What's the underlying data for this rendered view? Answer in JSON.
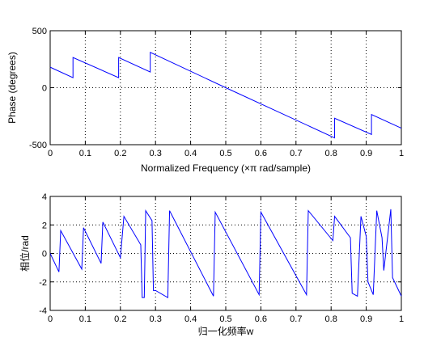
{
  "chart_data": [
    {
      "type": "line",
      "xlabel": "Normalized Frequency  (×π rad/sample)",
      "ylabel": "Phase (degrees)",
      "xlim": [
        0,
        1
      ],
      "ylim": [
        -500,
        500
      ],
      "xticks": [
        0,
        0.1,
        0.2,
        0.3,
        0.4,
        0.5,
        0.6,
        0.7,
        0.8,
        0.9,
        1
      ],
      "xtick_labels": [
        "0",
        "0.1",
        "0.2",
        "0.3",
        "0.4",
        "0.5",
        "0.6",
        "0.7",
        "0.8",
        "0.9",
        "1"
      ],
      "yticks": [
        -500,
        0,
        500
      ],
      "ytick_labels": [
        "-500",
        "0",
        "500"
      ],
      "grid": true,
      "series": [
        {
          "color": "#0000ff",
          "x": [
            0,
            0.065,
            0.065,
            0.195,
            0.195,
            0.285,
            0.285,
            0.5,
            0.81,
            0.81,
            0.915,
            0.915,
            1
          ],
          "y": [
            180,
            88,
            265,
            88,
            265,
            138,
            310,
            0,
            -440,
            -268,
            -410,
            -235,
            -355
          ]
        }
      ]
    },
    {
      "type": "line",
      "xlabel": "归一化频率w",
      "ylabel": "相位/rad",
      "xlim": [
        0,
        1
      ],
      "ylim": [
        -4,
        4
      ],
      "xticks": [
        0,
        0.1,
        0.2,
        0.3,
        0.4,
        0.5,
        0.6,
        0.7,
        0.8,
        0.9,
        1
      ],
      "xtick_labels": [
        "0",
        "0.1",
        "0.2",
        "0.3",
        "0.4",
        "0.5",
        "0.6",
        "0.7",
        "0.8",
        "0.9",
        "1"
      ],
      "yticks": [
        -4,
        -2,
        0,
        2,
        4
      ],
      "ytick_labels": [
        "-4",
        "-2",
        "0",
        "2",
        "4"
      ],
      "grid": true,
      "series": [
        {
          "color": "#0000ff",
          "x": [
            0,
            0.025,
            0.03,
            0.09,
            0.095,
            0.145,
            0.15,
            0.2,
            0.21,
            0.258,
            0.262,
            0.268,
            0.272,
            0.29,
            0.294,
            0.3,
            0.335,
            0.34,
            0.465,
            0.47,
            0.595,
            0.6,
            0.73,
            0.735,
            0.805,
            0.81,
            0.855,
            0.86,
            0.875,
            0.885,
            0.9,
            0.905,
            0.92,
            0.93,
            0.945,
            0.95,
            0.97,
            0.975,
            1
          ],
          "y": [
            0,
            -1.3,
            1.6,
            -1.1,
            1.8,
            -0.7,
            2.2,
            -0.3,
            2.6,
            0.6,
            -3.1,
            -3.1,
            3.0,
            2.3,
            -2.6,
            -2.6,
            -3.1,
            3.0,
            -3.0,
            2.9,
            -2.9,
            2.9,
            -2.9,
            3.0,
            0.9,
            2.6,
            1.1,
            -2.8,
            -3.0,
            2.6,
            1.2,
            -2.0,
            -2.9,
            3.0,
            1.1,
            -1.2,
            3.1,
            -1.7,
            -3.0
          ]
        }
      ]
    }
  ]
}
